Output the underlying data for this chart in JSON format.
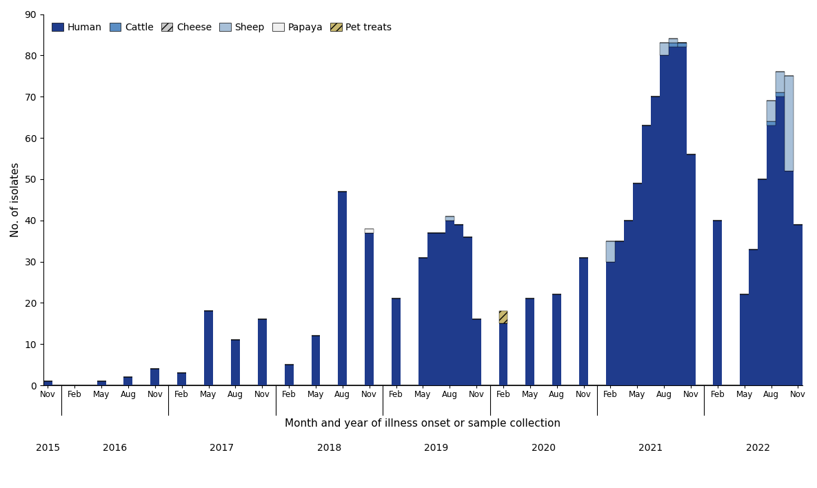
{
  "xlabel": "Month and year of illness onset or sample collection",
  "ylabel": "No. of isolates",
  "ylim": [
    0,
    90
  ],
  "yticks": [
    0,
    10,
    20,
    30,
    40,
    50,
    60,
    70,
    80,
    90
  ],
  "colors": {
    "Human": "#1f3b8c",
    "Cattle": "#5b8ec4",
    "Cheese": "#c8c8c8",
    "Sheep": "#a8c0d8",
    "Papaya": "#f0f0f0",
    "Pet treats": "#c8b870"
  },
  "tick_labels": [
    "Nov",
    "Feb",
    "May",
    "Aug",
    "Nov",
    "Feb",
    "May",
    "Aug",
    "Nov",
    "Feb",
    "May",
    "Aug",
    "Nov",
    "Feb",
    "May",
    "Aug",
    "Nov",
    "Feb",
    "May",
    "Aug",
    "Nov",
    "Feb",
    "May",
    "Aug",
    "Nov",
    "Feb",
    "May",
    "Aug",
    "Nov"
  ],
  "year_labels": [
    "2015",
    "2016",
    "2017",
    "2018",
    "2019",
    "2020",
    "2021",
    "2022"
  ],
  "year_label_centers": [
    0,
    2.0,
    6.0,
    10.0,
    14.0,
    18.0,
    22.0,
    26.0
  ],
  "year_sep_positions": [
    0.5,
    4.5,
    8.5,
    12.5,
    16.5,
    20.5,
    24.5
  ],
  "human": [
    1,
    0,
    1,
    2,
    4,
    3,
    18,
    11,
    13,
    5,
    12,
    47,
    37,
    21,
    31,
    41,
    38,
    16,
    15,
    20,
    22,
    30,
    30,
    49,
    63,
    56,
    40,
    22,
    32,
    33,
    50,
    63,
    70,
    52,
    39
  ],
  "cattle": [
    0,
    0,
    0,
    0,
    0,
    0,
    0,
    0,
    0,
    0,
    0,
    0,
    0,
    0,
    0,
    0,
    0,
    0,
    0,
    0,
    0,
    0,
    0,
    0,
    0,
    0,
    0,
    0,
    0,
    0,
    0,
    0,
    1,
    0,
    0
  ],
  "cheese": [
    0,
    0,
    0,
    0,
    0,
    0,
    0,
    0,
    0,
    0,
    0,
    0,
    0,
    0,
    0,
    0,
    0,
    0,
    0,
    0,
    0,
    0,
    0,
    0,
    0,
    0,
    0,
    0,
    0,
    0,
    0,
    0,
    0,
    0,
    0
  ],
  "sheep": [
    0,
    0,
    0,
    0,
    0,
    0,
    0,
    0,
    0,
    0,
    0,
    0,
    0,
    0,
    0,
    0,
    0,
    0,
    0,
    0,
    0,
    0,
    0,
    0,
    0,
    0,
    0,
    0,
    0,
    0,
    0,
    0,
    5,
    23,
    0
  ],
  "papaya": [
    0,
    0,
    0,
    0,
    0,
    0,
    0,
    0,
    0,
    0,
    0,
    0,
    1,
    0,
    0,
    0,
    0,
    0,
    0,
    0,
    0,
    0,
    0,
    0,
    0,
    0,
    0,
    0,
    0,
    0,
    0,
    0,
    0,
    0,
    0
  ],
  "pet": [
    0,
    0,
    0,
    0,
    0,
    0,
    0,
    0,
    0,
    0,
    0,
    0,
    0,
    0,
    0,
    0,
    0,
    0,
    3,
    0,
    0,
    0,
    0,
    0,
    0,
    0,
    0,
    0,
    0,
    0,
    0,
    0,
    0,
    0,
    0
  ],
  "bar_width": 0.75
}
